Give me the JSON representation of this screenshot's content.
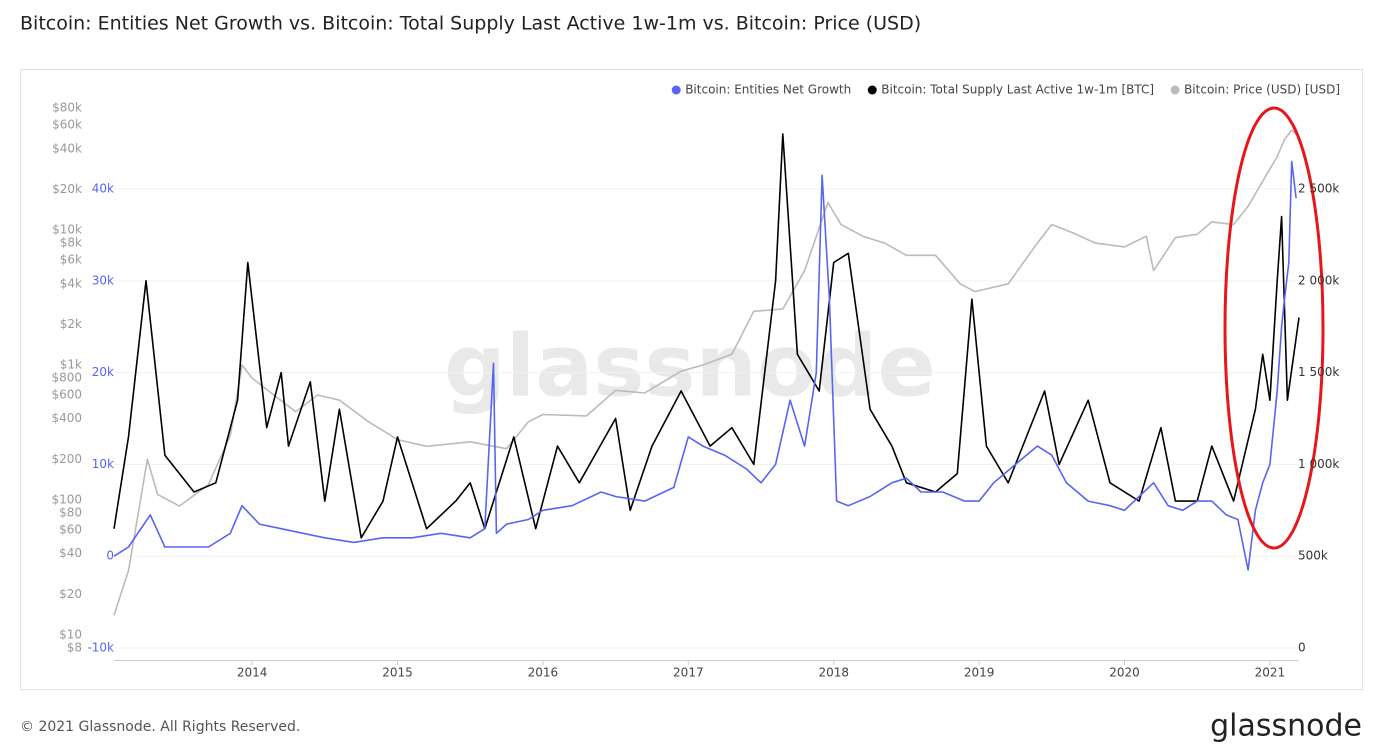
{
  "chart_data": {
    "type": "line",
    "title": "Bitcoin: Entities Net Growth vs. Bitcoin: Total Supply Last Active 1w-1m vs. Bitcoin: Price (USD)",
    "watermark": "glassnode",
    "footer": "© 2021 Glassnode. All Rights Reserved.",
    "brand": "glassnode",
    "xlim": [
      2013.05,
      2021.2
    ],
    "xticks": [
      2014,
      2015,
      2016,
      2017,
      2018,
      2019,
      2020,
      2021
    ],
    "ylim": [
      -10000,
      49700
    ],
    "yticks": [
      {
        "value": -10000,
        "label": "-10k"
      },
      0,
      {
        "value": 10000,
        "label": "10k"
      },
      {
        "value": 20000,
        "label": "20k"
      },
      {
        "value": 30000,
        "label": "30k"
      },
      {
        "value": 40000,
        "label": "40k"
      }
    ],
    "y2lim": [
      0,
      2985000
    ],
    "y2ticks": [
      0,
      {
        "value": 500000,
        "label": "500k"
      },
      {
        "value": 1000000,
        "label": "1 000k"
      },
      {
        "value": 1500000,
        "label": "1 500k"
      },
      {
        "value": 2000000,
        "label": "2 000k"
      },
      {
        "value": 2500000,
        "label": "2 500k"
      }
    ],
    "y3lim": [
      8,
      92000
    ],
    "y3scale": "log",
    "y3ticks": [
      {
        "value": 8,
        "label": "$8"
      },
      {
        "value": 10,
        "label": "$10"
      },
      {
        "value": 20,
        "label": "$20"
      },
      {
        "value": 40,
        "label": "$40"
      },
      {
        "value": 60,
        "label": "$60"
      },
      {
        "value": 80,
        "label": "$80"
      },
      {
        "value": 100,
        "label": "$100"
      },
      {
        "value": 200,
        "label": "$200"
      },
      {
        "value": 400,
        "label": "$400"
      },
      {
        "value": 600,
        "label": "$600"
      },
      {
        "value": 800,
        "label": "$800"
      },
      {
        "value": 1000,
        "label": "$1k"
      },
      {
        "value": 2000,
        "label": "$2k"
      },
      {
        "value": 4000,
        "label": "$4k"
      },
      {
        "value": 6000,
        "label": "$6k"
      },
      {
        "value": 8000,
        "label": "$8k"
      },
      {
        "value": 10000,
        "label": "$10k"
      },
      {
        "value": 20000,
        "label": "$20k"
      },
      {
        "value": 40000,
        "label": "$40k"
      },
      {
        "value": 60000,
        "label": "$60k"
      },
      {
        "value": 80000,
        "label": "$80k"
      }
    ],
    "series": [
      {
        "name": "Bitcoin: Entities Net Growth",
        "color": "#5865f2",
        "axis": "y",
        "x": [
          2013.05,
          2013.15,
          2013.3,
          2013.4,
          2013.5,
          2013.7,
          2013.85,
          2013.93,
          2014.05,
          2014.2,
          2014.35,
          2014.5,
          2014.7,
          2014.9,
          2015.1,
          2015.3,
          2015.5,
          2015.6,
          2015.66,
          2015.68,
          2015.75,
          2015.9,
          2016.0,
          2016.2,
          2016.4,
          2016.5,
          2016.7,
          2016.9,
          2017.0,
          2017.1,
          2017.25,
          2017.4,
          2017.5,
          2017.6,
          2017.7,
          2017.8,
          2017.88,
          2017.92,
          2017.97,
          2018.02,
          2018.1,
          2018.25,
          2018.4,
          2018.5,
          2018.6,
          2018.75,
          2018.9,
          2019.0,
          2019.1,
          2019.25,
          2019.4,
          2019.5,
          2019.6,
          2019.75,
          2019.9,
          2020.0,
          2020.1,
          2020.2,
          2020.3,
          2020.4,
          2020.5,
          2020.6,
          2020.7,
          2020.78,
          2020.85,
          2020.9,
          2020.95,
          2021.0,
          2021.05,
          2021.08,
          2021.1,
          2021.13,
          2021.15,
          2021.18
        ],
        "values": [
          0,
          1000,
          4500,
          1000,
          1000,
          1000,
          2500,
          5500,
          3500,
          3000,
          2500,
          2000,
          1500,
          2000,
          2000,
          2500,
          2000,
          3000,
          21000,
          2500,
          3500,
          4000,
          5000,
          5500,
          7000,
          6500,
          6000,
          7500,
          13000,
          12000,
          11000,
          9500,
          8000,
          10000,
          17000,
          12000,
          20000,
          41500,
          28000,
          6000,
          5500,
          6500,
          8000,
          8500,
          7000,
          7000,
          6000,
          6000,
          8000,
          10000,
          12000,
          11000,
          8000,
          6000,
          5500,
          5000,
          6500,
          8000,
          5500,
          5000,
          6000,
          6000,
          4500,
          4000,
          -1500,
          5000,
          8000,
          10000,
          18000,
          25000,
          28000,
          32000,
          43000,
          39000
        ]
      },
      {
        "name": "Bitcoin: Total Supply Last Active 1w-1m [BTC]",
        "color": "#000000",
        "axis": "y2",
        "x": [
          2013.05,
          2013.15,
          2013.27,
          2013.4,
          2013.6,
          2013.75,
          2013.9,
          2013.97,
          2014.1,
          2014.2,
          2014.25,
          2014.4,
          2014.5,
          2014.6,
          2014.75,
          2014.9,
          2015.0,
          2015.2,
          2015.4,
          2015.5,
          2015.6,
          2015.8,
          2015.95,
          2016.1,
          2016.25,
          2016.5,
          2016.6,
          2016.75,
          2016.95,
          2017.15,
          2017.3,
          2017.45,
          2017.6,
          2017.65,
          2017.75,
          2017.9,
          2018.0,
          2018.1,
          2018.25,
          2018.4,
          2018.5,
          2018.7,
          2018.85,
          2018.95,
          2019.05,
          2019.2,
          2019.45,
          2019.55,
          2019.75,
          2019.9,
          2020.1,
          2020.25,
          2020.35,
          2020.5,
          2020.6,
          2020.75,
          2020.9,
          2020.95,
          2021.0,
          2021.05,
          2021.08,
          2021.12,
          2021.2
        ],
        "values": [
          650000,
          1150000,
          2000000,
          1050000,
          850000,
          900000,
          1350000,
          2100000,
          1200000,
          1500000,
          1100000,
          1450000,
          800000,
          1300000,
          600000,
          800000,
          1150000,
          650000,
          800000,
          900000,
          650000,
          1150000,
          650000,
          1100000,
          900000,
          1250000,
          750000,
          1100000,
          1400000,
          1100000,
          1200000,
          1000000,
          2000000,
          2800000,
          1600000,
          1400000,
          2100000,
          2150000,
          1300000,
          1100000,
          900000,
          850000,
          950000,
          1900000,
          1100000,
          900000,
          1400000,
          1000000,
          1350000,
          900000,
          800000,
          1200000,
          800000,
          800000,
          1100000,
          800000,
          1300000,
          1600000,
          1350000,
          2000000,
          2350000,
          1350000,
          1800000
        ]
      },
      {
        "name": "Bitcoin: Price (USD) [USD]",
        "color": "#bbbbbb",
        "axis": "y3",
        "x": [
          2013.05,
          2013.15,
          2013.28,
          2013.35,
          2013.5,
          2013.7,
          2013.85,
          2013.93,
          2014.0,
          2014.15,
          2014.3,
          2014.45,
          2014.6,
          2014.8,
          2015.0,
          2015.2,
          2015.5,
          2015.75,
          2015.9,
          2016.0,
          2016.3,
          2016.5,
          2016.7,
          2016.95,
          2017.1,
          2017.3,
          2017.45,
          2017.65,
          2017.8,
          2017.96,
          2018.05,
          2018.2,
          2018.35,
          2018.5,
          2018.7,
          2018.87,
          2018.97,
          2019.2,
          2019.4,
          2019.5,
          2019.65,
          2019.8,
          2020.0,
          2020.15,
          2020.2,
          2020.35,
          2020.5,
          2020.6,
          2020.75,
          2020.85,
          2020.95,
          2021.05,
          2021.1,
          2021.15,
          2021.2
        ],
        "values": [
          14,
          30,
          200,
          110,
          90,
          130,
          300,
          1000,
          800,
          600,
          450,
          600,
          550,
          380,
          280,
          250,
          270,
          240,
          380,
          430,
          420,
          650,
          620,
          900,
          1000,
          1200,
          2500,
          2600,
          5000,
          16000,
          11000,
          9000,
          8000,
          6500,
          6500,
          4000,
          3500,
          4000,
          8000,
          11000,
          9500,
          8000,
          7500,
          9000,
          5000,
          8800,
          9300,
          11500,
          11000,
          15000,
          23000,
          35000,
          47000,
          55000,
          49000
        ]
      }
    ],
    "legend": "top-right"
  }
}
